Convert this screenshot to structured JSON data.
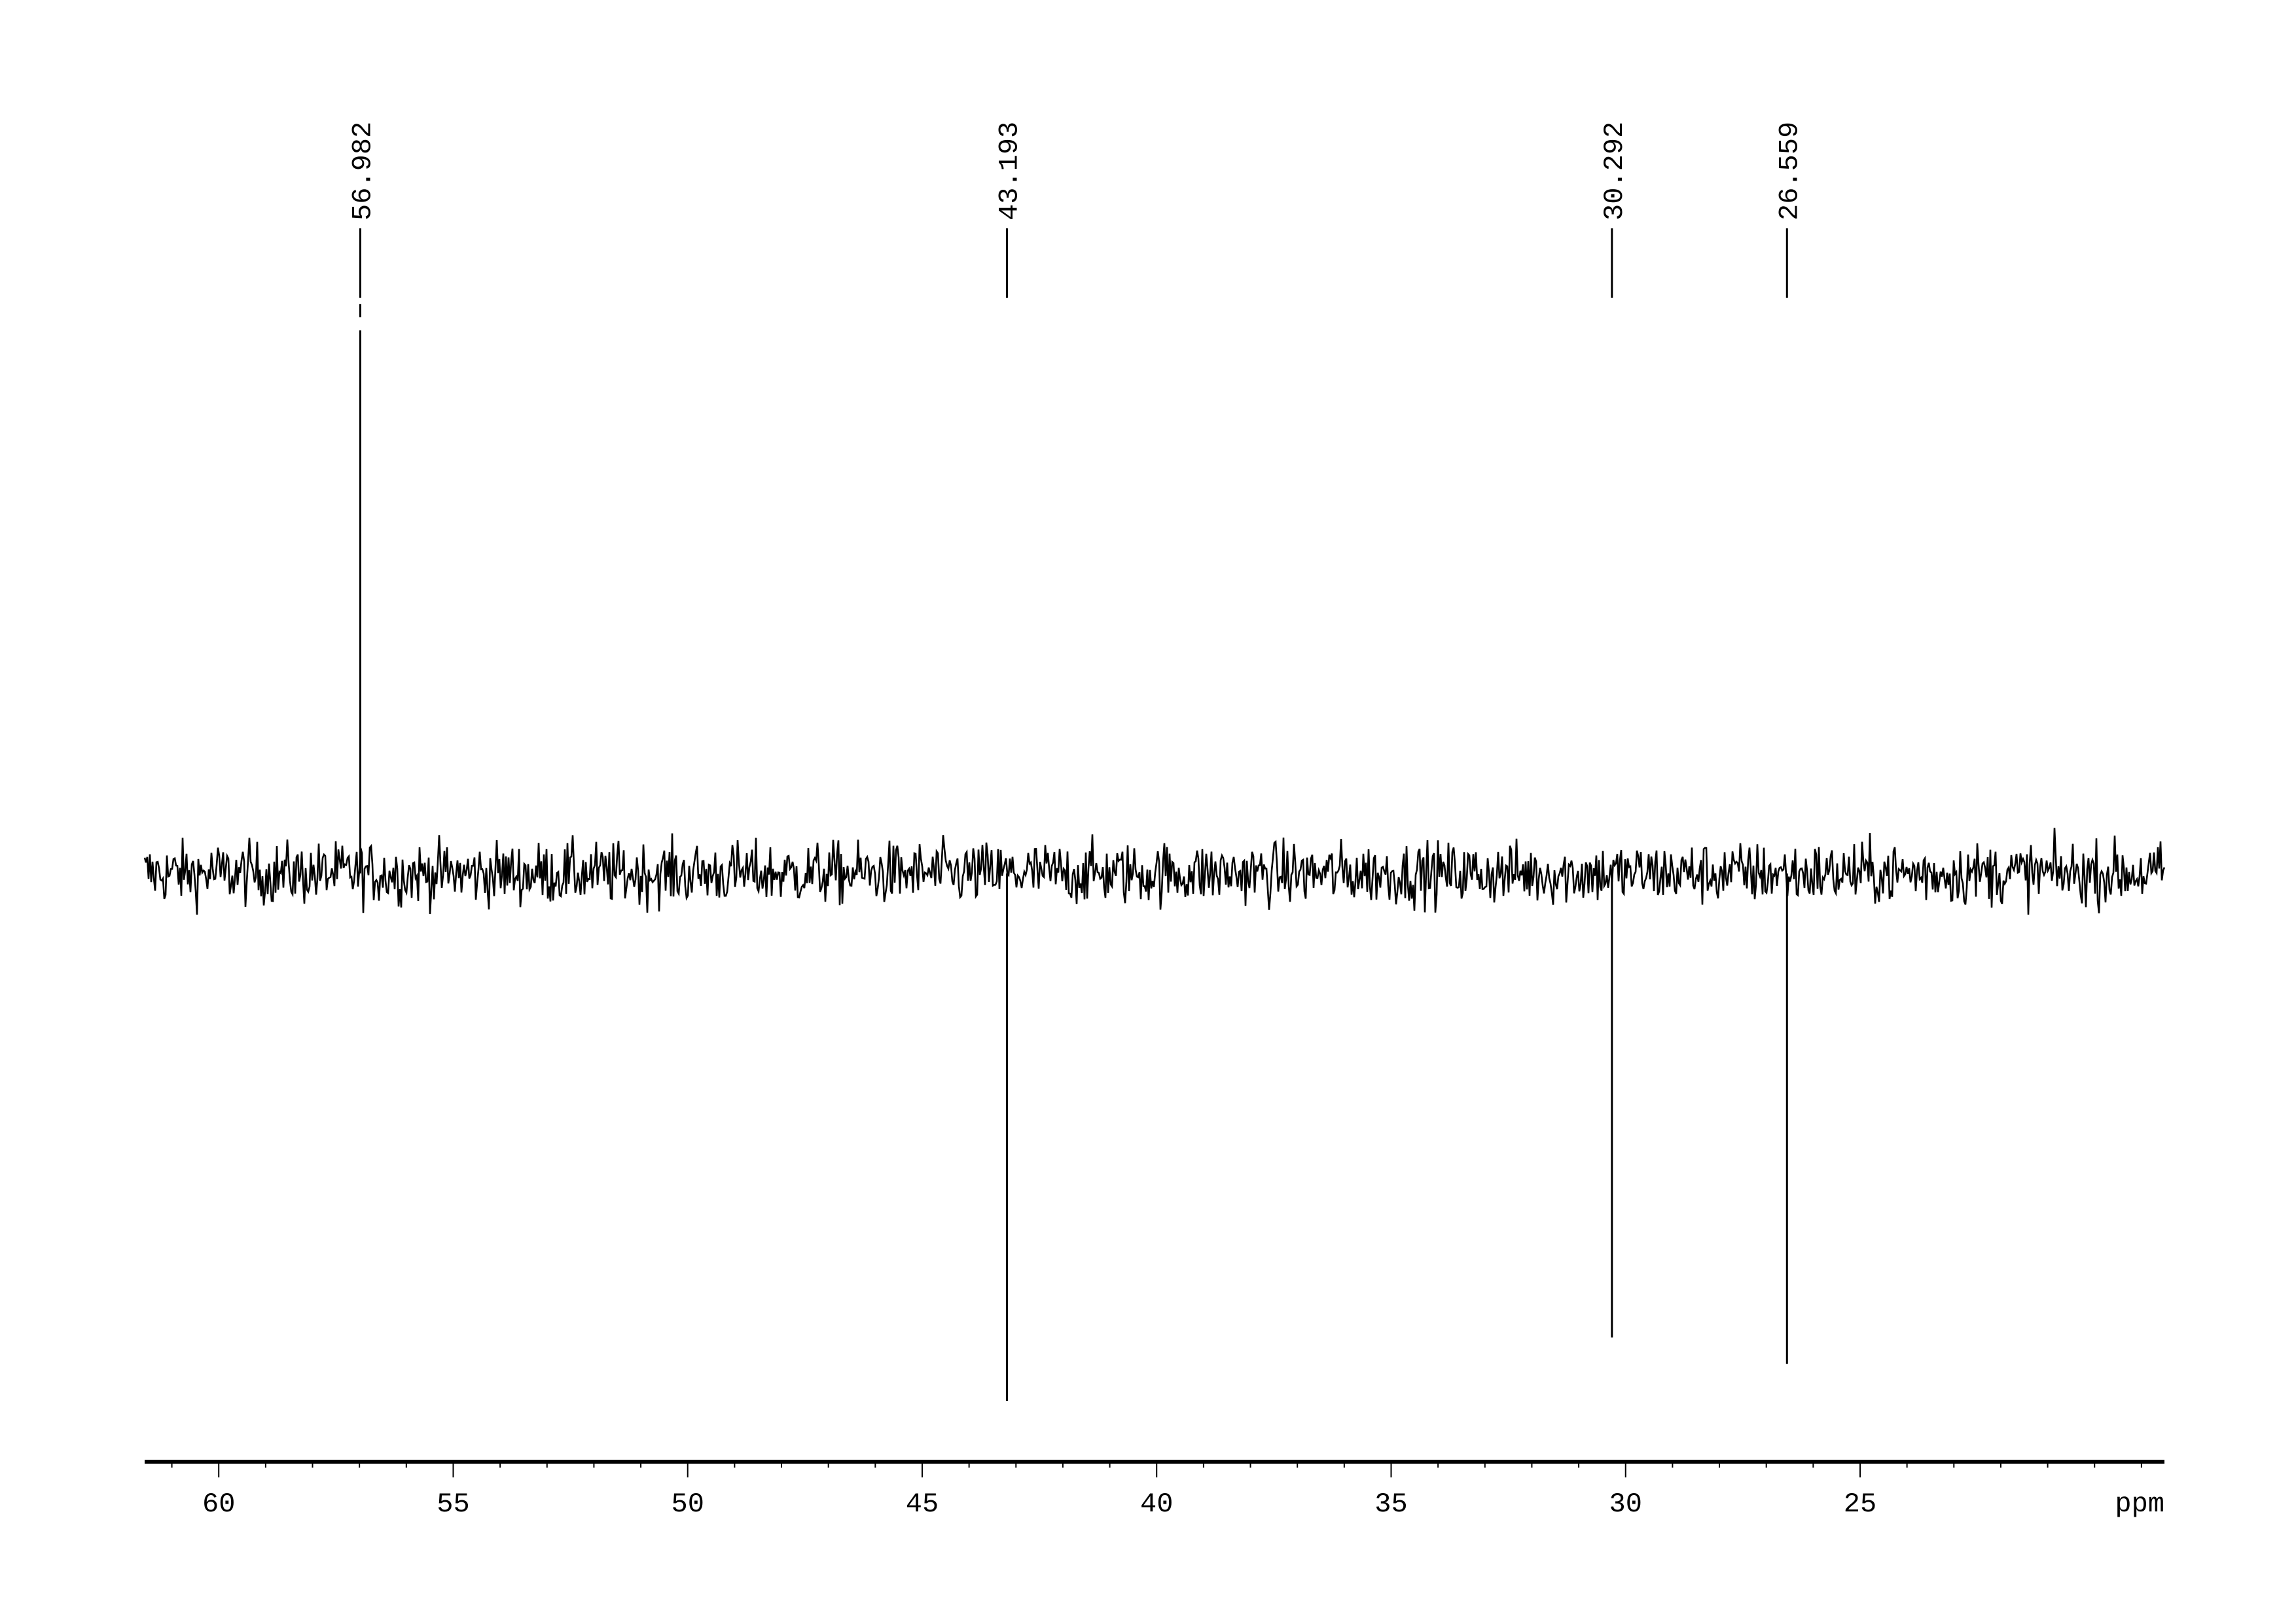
{
  "chart_data": {
    "type": "line",
    "title": "",
    "xlabel": "ppm",
    "ylabel": "",
    "xlim": [
      61.58,
      18.51
    ],
    "x_reversed": true,
    "grid": false,
    "line_color": "#000000",
    "x_ticks": [
      60,
      55,
      50,
      45,
      40,
      35,
      30,
      25
    ],
    "x_tick_labels": [
      "60",
      "55",
      "50",
      "45",
      "40",
      "35",
      "30",
      "25"
    ],
    "minor_tick_step": 1,
    "peaks": [
      {
        "label": "56.982",
        "ppm": 56.982,
        "intensity": 1.03
      },
      {
        "label": "43.193",
        "ppm": 43.193,
        "intensity": -1.0
      },
      {
        "label": "30.292",
        "ppm": 30.292,
        "intensity": -0.88
      },
      {
        "label": "26.559",
        "ppm": 26.559,
        "intensity": -0.93
      }
    ],
    "noise_level": 0.03
  }
}
